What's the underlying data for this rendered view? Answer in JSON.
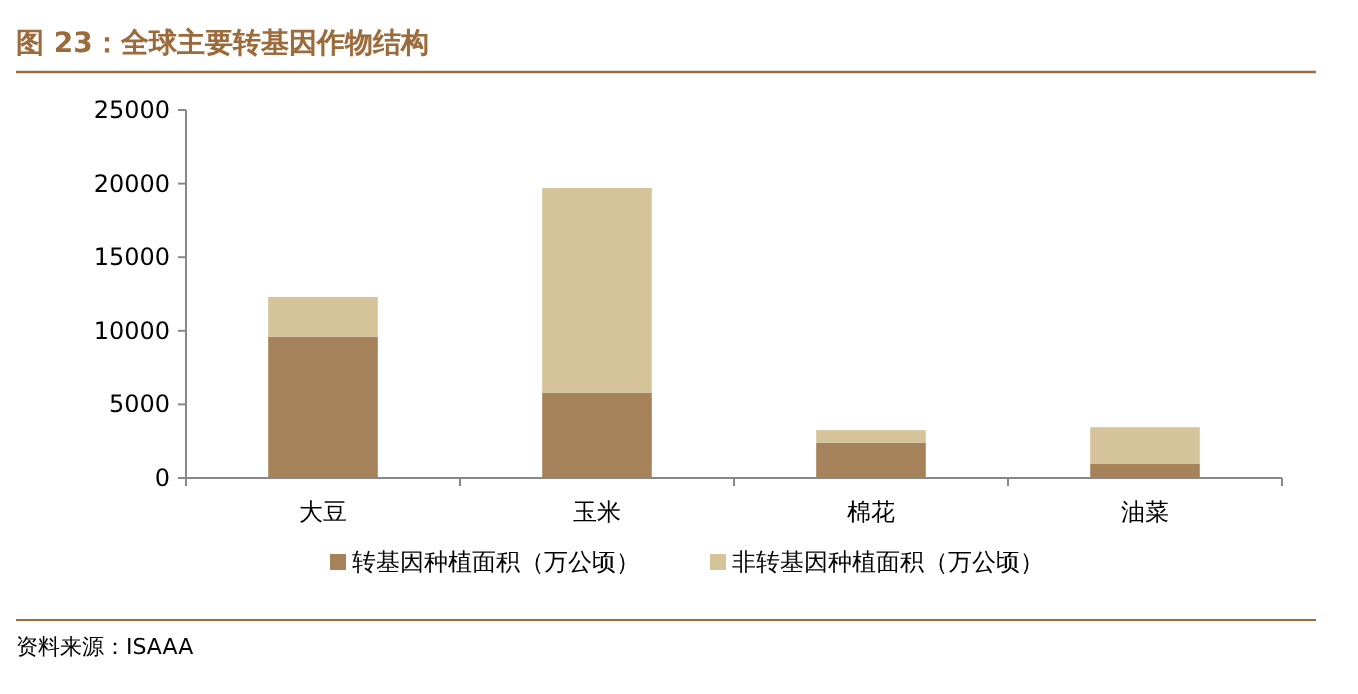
{
  "chart_data": {
    "type": "bar",
    "title": "图 23：全球主要转基因作物结构",
    "categories": [
      "大豆",
      "玉米",
      "棉花",
      "油菜"
    ],
    "stacked": true,
    "series": [
      {
        "name": "转基因种植面积（万公顷）",
        "color": "#a5825a",
        "values": [
          9600,
          5800,
          2400,
          950
        ]
      },
      {
        "name": "非转基因种植面积（万公顷）",
        "color": "#d5c39a",
        "values": [
          2700,
          13900,
          850,
          2500
        ]
      }
    ],
    "ylim": [
      0,
      25000
    ],
    "yticks": [
      0,
      5000,
      10000,
      15000,
      20000,
      25000
    ],
    "grid": false,
    "legend": "bottom",
    "annotations": [
      "资料来源：ISAAA"
    ]
  }
}
